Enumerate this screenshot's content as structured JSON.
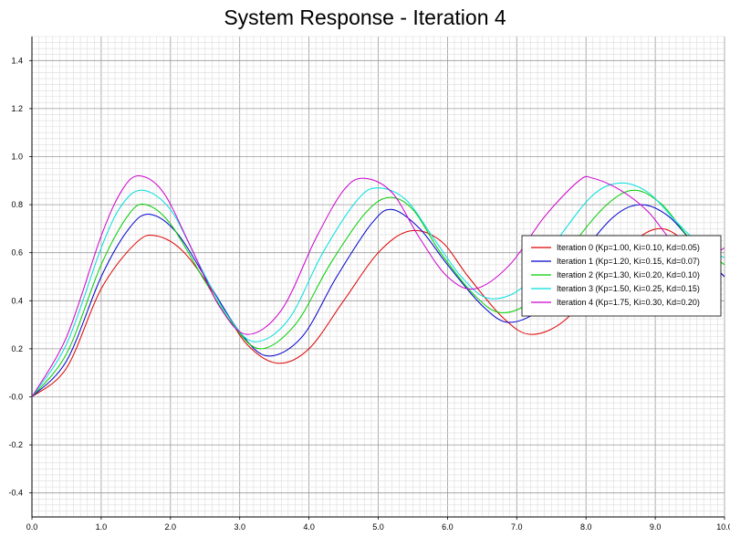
{
  "chart_data": {
    "type": "line",
    "title": "System Response - Iteration 4",
    "xlabel": "",
    "ylabel": "",
    "xlim": [
      0,
      10
    ],
    "ylim": [
      -0.5,
      1.5
    ],
    "xticks": [
      "0.0",
      "1.0",
      "2.0",
      "3.0",
      "4.0",
      "5.0",
      "6.0",
      "7.0",
      "8.0",
      "9.0",
      "10.0"
    ],
    "yticks": [
      "-0.4",
      "-0.2",
      "-0.0",
      "0.2",
      "0.4",
      "0.6",
      "0.8",
      "1.0",
      "1.2",
      "1.4"
    ],
    "grid": true,
    "legend_position": "center-right",
    "series": [
      {
        "name": "Iteration 0 (Kp=1.00, Ki=0.10, Kd=0.05)",
        "color": "#dd0000",
        "x": [
          0,
          0.5,
          1.0,
          1.5,
          1.8,
          2.2,
          2.7,
          3.1,
          3.55,
          4.0,
          4.5,
          5.0,
          5.45,
          5.9,
          6.3,
          6.8,
          7.2,
          7.7,
          8.2,
          8.7,
          9.1,
          9.5,
          10.0
        ],
        "y": [
          0.0,
          0.12,
          0.45,
          0.64,
          0.67,
          0.6,
          0.4,
          0.22,
          0.14,
          0.2,
          0.4,
          0.6,
          0.69,
          0.65,
          0.5,
          0.33,
          0.26,
          0.32,
          0.5,
          0.65,
          0.7,
          0.63,
          0.5
        ]
      },
      {
        "name": "Iteration 1 (Kp=1.20, Ki=0.15, Kd=0.07)",
        "color": "#0000cc",
        "x": [
          0,
          0.5,
          1.0,
          1.4,
          1.7,
          2.1,
          2.6,
          3.0,
          3.4,
          3.9,
          4.4,
          4.9,
          5.2,
          5.6,
          6.0,
          6.5,
          6.9,
          7.4,
          7.9,
          8.4,
          8.8,
          9.2,
          9.6,
          10.0
        ],
        "y": [
          0.0,
          0.15,
          0.5,
          0.7,
          0.76,
          0.68,
          0.45,
          0.27,
          0.17,
          0.25,
          0.5,
          0.72,
          0.78,
          0.7,
          0.55,
          0.38,
          0.31,
          0.38,
          0.58,
          0.75,
          0.8,
          0.75,
          0.62,
          0.5
        ]
      },
      {
        "name": "Iteration 2 (Kp=1.30, Ki=0.20, Kd=0.10)",
        "color": "#00cc00",
        "x": [
          0,
          0.5,
          1.0,
          1.4,
          1.65,
          2.0,
          2.5,
          2.9,
          3.3,
          3.8,
          4.3,
          4.8,
          5.15,
          5.5,
          5.9,
          6.4,
          6.8,
          7.3,
          7.8,
          8.3,
          8.7,
          9.1,
          9.5,
          10.0
        ],
        "y": [
          0.0,
          0.18,
          0.55,
          0.76,
          0.8,
          0.72,
          0.48,
          0.3,
          0.2,
          0.3,
          0.55,
          0.76,
          0.83,
          0.78,
          0.6,
          0.42,
          0.35,
          0.42,
          0.63,
          0.8,
          0.86,
          0.8,
          0.66,
          0.55
        ]
      },
      {
        "name": "Iteration 3 (Kp=1.50, Ki=0.25, Kd=0.15)",
        "color": "#00dddd",
        "x": [
          0,
          0.5,
          1.0,
          1.3,
          1.6,
          2.0,
          2.4,
          2.8,
          3.2,
          3.7,
          4.2,
          4.7,
          5.0,
          5.4,
          5.8,
          6.2,
          6.6,
          7.1,
          7.6,
          8.1,
          8.5,
          8.9,
          9.3,
          9.7,
          10.0
        ],
        "y": [
          0.0,
          0.22,
          0.62,
          0.8,
          0.86,
          0.78,
          0.56,
          0.35,
          0.23,
          0.32,
          0.6,
          0.82,
          0.87,
          0.82,
          0.66,
          0.5,
          0.41,
          0.46,
          0.66,
          0.84,
          0.89,
          0.85,
          0.73,
          0.62,
          0.58
        ]
      },
      {
        "name": "Iteration 4 (Kp=1.75, Ki=0.30, Kd=0.20)",
        "color": "#cc00cc",
        "x": [
          0,
          0.5,
          1.0,
          1.3,
          1.55,
          1.9,
          2.3,
          2.7,
          3.1,
          3.6,
          4.1,
          4.5,
          4.8,
          5.2,
          5.6,
          6.0,
          6.4,
          6.9,
          7.4,
          7.9,
          8.1,
          8.5,
          8.9,
          9.3,
          9.7,
          10.0
        ],
        "y": [
          0.0,
          0.25,
          0.67,
          0.86,
          0.92,
          0.85,
          0.62,
          0.38,
          0.26,
          0.36,
          0.66,
          0.86,
          0.91,
          0.85,
          0.66,
          0.5,
          0.45,
          0.55,
          0.75,
          0.9,
          0.91,
          0.86,
          0.77,
          0.63,
          0.58,
          0.62
        ]
      }
    ]
  }
}
